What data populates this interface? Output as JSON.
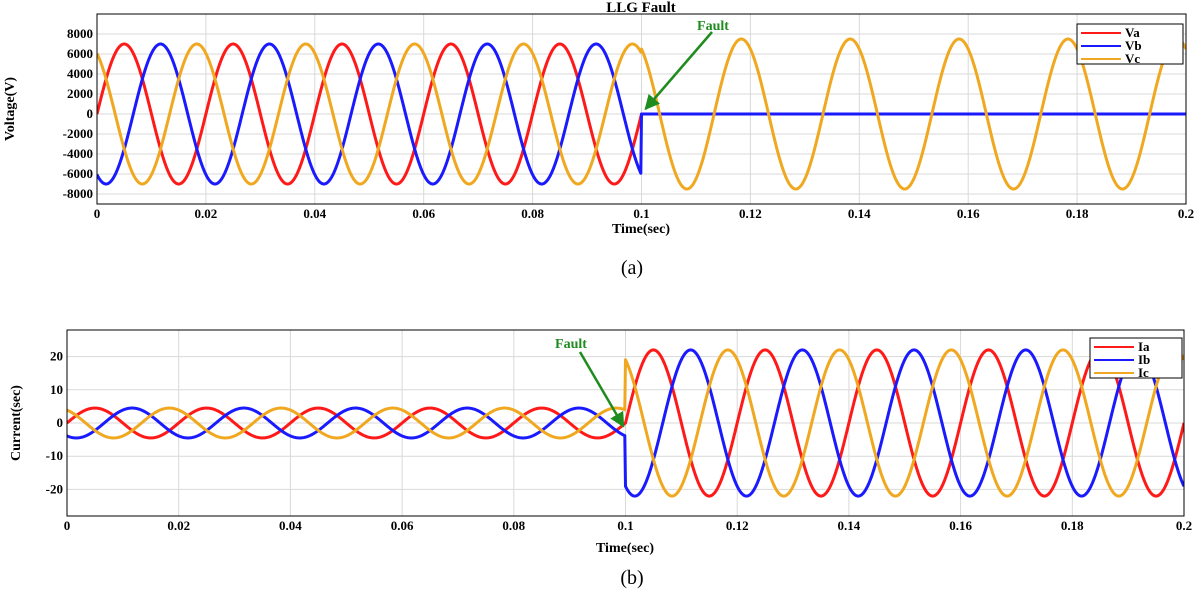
{
  "chart_data": [
    {
      "type": "line",
      "title": "LLG Fault",
      "xlabel": "Time(sec)",
      "ylabel": "Voltage(V)",
      "caption": "(a)",
      "xlim": [
        0,
        0.2
      ],
      "ylim": [
        -9000,
        10000
      ],
      "grid": true,
      "legend_position": "top-right",
      "x_ticks": [
        0,
        0.02,
        0.04,
        0.06,
        0.08,
        0.1,
        0.12,
        0.14,
        0.16,
        0.18,
        0.2
      ],
      "x_tick_labels": [
        "0",
        "0.02",
        "0.04",
        "0.06",
        "0.08",
        "0.1",
        "0.12",
        "0.14",
        "0.16",
        "0.18",
        "0.2"
      ],
      "y_ticks": [
        -8000,
        -6000,
        -4000,
        -2000,
        0,
        2000,
        4000,
        6000,
        8000
      ],
      "y_tick_labels": [
        "-8000",
        "-6000",
        "-4000",
        "-2000",
        "0",
        "2000",
        "4000",
        "6000",
        "8000"
      ],
      "frequency_hz": 50,
      "fault_time": 0.1,
      "annotation": {
        "text": "Fault",
        "x": 0.1,
        "y": 500,
        "color": "#1e8c1e"
      },
      "series": [
        {
          "name": "Va",
          "color": "#ff1a1a",
          "phase_deg": 0,
          "amplitude_pre": 7000,
          "amplitude_post": 0
        },
        {
          "name": "Vb",
          "color": "#1a1aff",
          "phase_deg": -120,
          "amplitude_pre": 7000,
          "amplitude_post": 0
        },
        {
          "name": "Vc",
          "color": "#f0a820",
          "phase_deg": 120,
          "amplitude_pre": 7000,
          "amplitude_post": 7500
        }
      ]
    },
    {
      "type": "line",
      "title": "",
      "xlabel": "Time(sec)",
      "ylabel": "Current(sec)",
      "caption": "(b)",
      "xlim": [
        0,
        0.2
      ],
      "ylim": [
        -28,
        28
      ],
      "grid": true,
      "legend_position": "top-right",
      "x_ticks": [
        0,
        0.02,
        0.04,
        0.06,
        0.08,
        0.1,
        0.12,
        0.14,
        0.16,
        0.18,
        0.2
      ],
      "x_tick_labels": [
        "0",
        "0.02",
        "0.04",
        "0.06",
        "0.08",
        "0.1",
        "0.12",
        "0.14",
        "0.16",
        "0.18",
        "0.2"
      ],
      "y_ticks": [
        -20,
        -10,
        0,
        10,
        20
      ],
      "y_tick_labels": [
        "-20",
        "-10",
        "0",
        "10",
        "20"
      ],
      "frequency_hz": 50,
      "fault_time": 0.1,
      "annotation": {
        "text": "Fault",
        "x": 0.1,
        "y": -1,
        "color": "#1e8c1e"
      },
      "series": [
        {
          "name": "Ia",
          "color": "#ff1a1a",
          "phase_deg": 0,
          "amplitude_pre": 4.5,
          "amplitude_post": 22
        },
        {
          "name": "Ib",
          "color": "#1a1aff",
          "phase_deg": -120,
          "amplitude_pre": 4.5,
          "amplitude_post": 22
        },
        {
          "name": "Ic",
          "color": "#f0a820",
          "phase_deg": 120,
          "amplitude_pre": 4.5,
          "amplitude_post": 22
        }
      ]
    }
  ]
}
